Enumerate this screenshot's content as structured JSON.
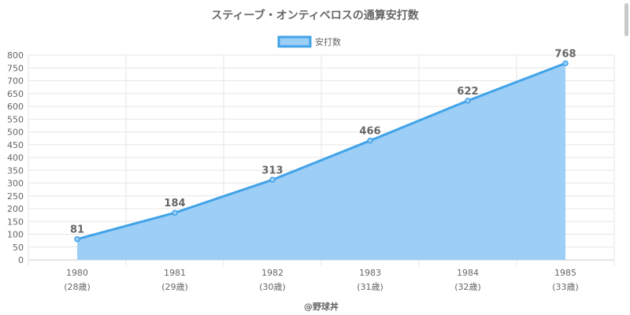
{
  "chart_data": {
    "type": "area",
    "title": "スティーブ・オンティベロスの通算安打数",
    "categories": [
      "1980",
      "1981",
      "1982",
      "1983",
      "1984",
      "1985"
    ],
    "category_sublabels": [
      "(28歳)",
      "(29歳)",
      "(30歳)",
      "(31歳)",
      "(32歳)",
      "(33歳)"
    ],
    "series": [
      {
        "name": "安打数",
        "values": [
          81,
          184,
          313,
          466,
          622,
          768
        ]
      }
    ],
    "ylim": [
      0,
      800
    ],
    "ytick_step": 50,
    "grid": true,
    "legend": "top-center",
    "credit": "@野球丼",
    "colors": {
      "line": "#41a3e8",
      "fill": "#9dcef6",
      "grid": "#e6e6e6",
      "axis": "#c8c8c8"
    }
  }
}
